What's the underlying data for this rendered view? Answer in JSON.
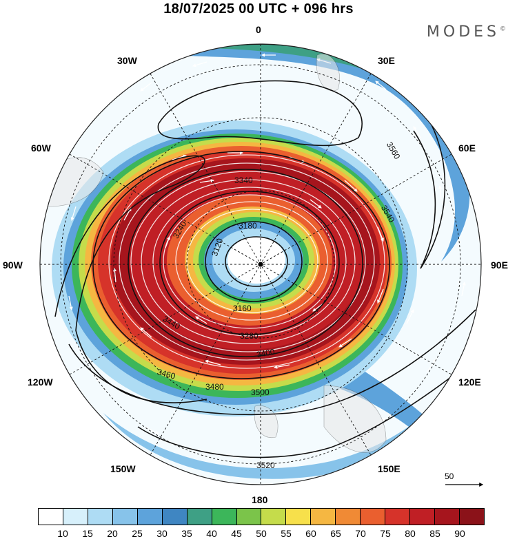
{
  "title": "18/07/2025  00 UTC  + 096 hrs",
  "brand": "MODES",
  "brand_mark": "©",
  "longitude_labels": [
    "0",
    "30E",
    "60E",
    "90E",
    "120E",
    "150E",
    "180",
    "150W",
    "120W",
    "90W",
    "60W",
    "30W"
  ],
  "contours": {
    "color": "#111111",
    "labels": [
      "3120",
      "3160",
      "3180",
      "3240",
      "3280",
      "3340",
      "3400",
      "3440",
      "3460",
      "3480",
      "3500",
      "3520",
      "3540",
      "3560"
    ]
  },
  "wind_speed_levels": [
    10,
    15,
    20,
    25,
    30,
    35,
    40,
    45,
    50,
    55,
    60,
    65,
    70,
    75,
    80,
    85,
    90
  ],
  "colorbar_colors": [
    "#ffffff",
    "#d7f0fb",
    "#aedcf4",
    "#87c3ea",
    "#5da3db",
    "#3f86c2",
    "#3ea085",
    "#3cb65a",
    "#7bc44a",
    "#c5dc4b",
    "#f7e04b",
    "#f5b742",
    "#f08a35",
    "#ea5f2f",
    "#d6332a",
    "#c01f25",
    "#a6151d",
    "#8b1219"
  ],
  "reference_vector": {
    "label": "50"
  }
}
